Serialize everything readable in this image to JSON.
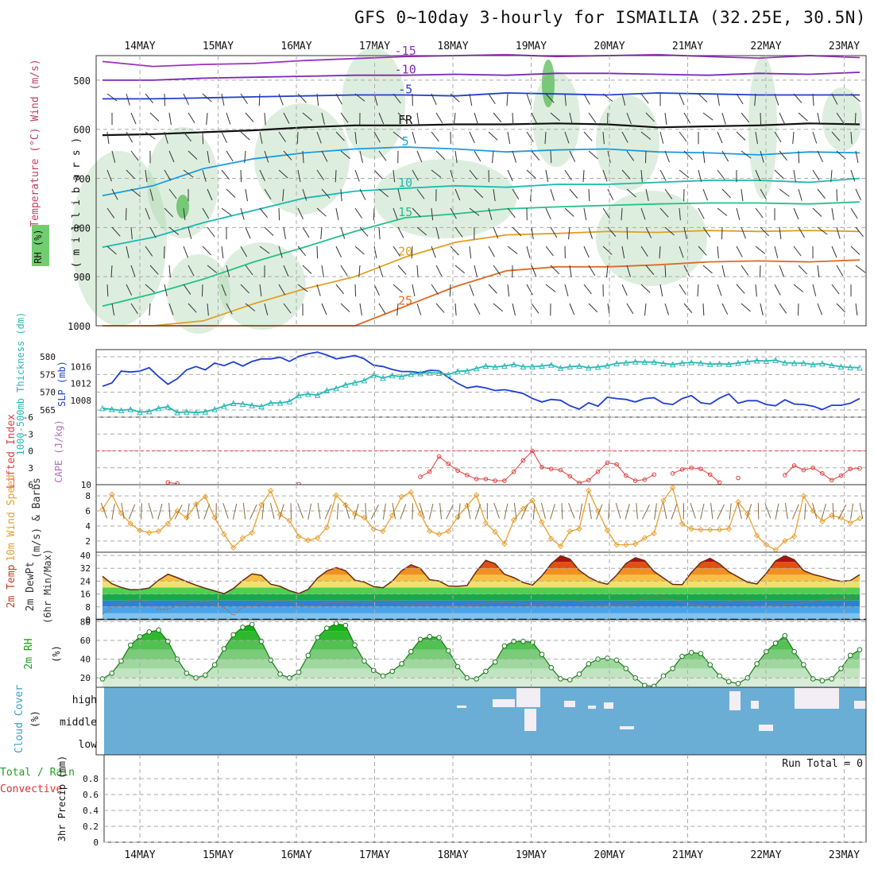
{
  "title": "GFS 0~10day 3-hourly for ISMAILIA (32.25E, 30.5N)",
  "dates": [
    "14MAY",
    "15MAY",
    "16MAY",
    "17MAY",
    "18MAY",
    "19MAY",
    "20MAY",
    "21MAY",
    "22MAY",
    "23MAY"
  ],
  "colors": {
    "rh_fill": "#9fcfa0",
    "slp": "#1f3fd0",
    "thickness": "#2ab7b7",
    "lifted_index": "#e04040",
    "wind10m": "#e8a030",
    "temp_fill": "#e05010",
    "dewpt": "#2a7ee0",
    "rh2m": "#1fc01f",
    "cloud_bg": "#6aaed6",
    "cloud_gap": "#f2eef4"
  },
  "chart_data": [
    {
      "type": "heatmap",
      "id": "upper-air",
      "ylabel_left": "RH (%)",
      "ylabel_mid": "Temperature (°C) Wind (m/s)",
      "ylabel_inner": "( m i l l i b a r s )",
      "y_ticks": [
        500,
        600,
        700,
        800,
        900,
        1000
      ],
      "ylim": [
        1000,
        450
      ],
      "temperature_contours": [
        {
          "label": "-15",
          "pressure": [
            462,
            472,
            468,
            466,
            460,
            456,
            452,
            450,
            448,
            452,
            450,
            448,
            452,
            455,
            450,
            454
          ],
          "color": "#9b30c0"
        },
        {
          "label": "-10",
          "pressure": [
            500,
            500,
            496,
            494,
            492,
            490,
            490,
            488,
            490,
            486,
            486,
            488,
            490,
            486,
            488,
            484
          ],
          "color": "#7a28b8"
        },
        {
          "label": "-5",
          "pressure": [
            538,
            538,
            536,
            534,
            532,
            530,
            530,
            532,
            526,
            528,
            530,
            526,
            528,
            530,
            530,
            530
          ],
          "color": "#1f3fd0"
        },
        {
          "label": "FR",
          "pressure": [
            612,
            610,
            606,
            602,
            596,
            592,
            592,
            590,
            590,
            588,
            590,
            596,
            594,
            592,
            588,
            590
          ],
          "color": "#111111"
        },
        {
          "label": "5",
          "pressure": [
            735,
            715,
            680,
            660,
            648,
            640,
            636,
            640,
            646,
            642,
            640,
            646,
            648,
            652,
            646,
            648
          ],
          "color": "#1b9be0"
        },
        {
          "label": "10",
          "pressure": [
            840,
            820,
            790,
            765,
            740,
            726,
            720,
            715,
            718,
            712,
            712,
            708,
            704,
            704,
            708,
            700
          ],
          "color": "#1cb8b0"
        },
        {
          "label": "15",
          "pressure": [
            960,
            935,
            905,
            870,
            840,
            808,
            780,
            772,
            762,
            758,
            755,
            752,
            750,
            750,
            752,
            748
          ],
          "color": "#24c08a"
        },
        {
          "label": "20",
          "pressure": [
            1000,
            1000,
            990,
            955,
            925,
            900,
            860,
            830,
            815,
            812,
            808,
            810,
            806,
            808,
            806,
            808
          ],
          "color": "#e0a020"
        },
        {
          "label": "25",
          "pressure": [
            1000,
            1000,
            1000,
            1000,
            1000,
            1000,
            960,
            920,
            888,
            880,
            880,
            876,
            870,
            868,
            870,
            866
          ],
          "color": "#e06a20"
        }
      ]
    },
    {
      "type": "line",
      "id": "slp-thickness",
      "ylabel_left": "1000-500mb Thickness (dm)",
      "ylabel_right": "SLP (mb)",
      "left_ticks": [
        "580",
        "575",
        "570",
        "565"
      ],
      "right_ticks": [
        "1016",
        "1012",
        "1008"
      ],
      "ylim_left": [
        563,
        582
      ],
      "ylim_right": [
        1004,
        1020
      ],
      "series": [
        {
          "name": "SLP (mb)",
          "axis": "right",
          "values": [
            1011.3,
            1012.1,
            1014.9,
            1014.7,
            1014.9,
            1015.7,
            1013.6,
            1011.8,
            1013.1,
            1015.2,
            1016.0,
            1015.2,
            1016.8,
            1016.2,
            1017.1,
            1016.1,
            1017.2,
            1017.8,
            1017.8,
            1018.2,
            1017.2,
            1018.4,
            1019.0,
            1019.4,
            1018.7,
            1017.8,
            1018.2,
            1018.6,
            1017.8,
            1016.3,
            1016.0,
            1015.3,
            1014.8,
            1014.8,
            1014.5,
            1015.1,
            1015.0,
            1013.4,
            1012.0,
            1010.9,
            1011.3,
            1010.9,
            1010.3,
            1010.5,
            1010.1,
            1009.6,
            1008.4,
            1007.6,
            1008.2,
            1008.0,
            1006.7,
            1005.9,
            1007.4,
            1006.6,
            1008.7,
            1008.4,
            1008.2,
            1007.6,
            1008.4,
            1008.6,
            1007.3,
            1007.0,
            1008.4,
            1009.1,
            1007.4,
            1007.1,
            1008.5,
            1009.5,
            1007.3,
            1007.9,
            1007.9,
            1007.0,
            1006.7,
            1008.1,
            1007.1,
            1007.0,
            1006.6,
            1005.8,
            1006.8,
            1006.8,
            1007.3,
            1008.4
          ]
        },
        {
          "name": "1000-500mb Thickness (dm)",
          "axis": "left",
          "values": [
            565.5,
            565.2,
            564.9,
            565.2,
            564.4,
            564.6,
            565.5,
            565.9,
            564.3,
            564.5,
            564.3,
            564.5,
            565.2,
            566.1,
            566.9,
            566.7,
            566.3,
            566.0,
            567.0,
            567.0,
            567.4,
            569.1,
            569.5,
            569.2,
            570.5,
            571.1,
            572.1,
            572.7,
            573.3,
            574.8,
            574.0,
            574.7,
            574.4,
            575.1,
            575.3,
            575.5,
            575.4,
            575.0,
            575.9,
            576.0,
            576.7,
            577.4,
            577.1,
            577.4,
            577.8,
            577.2,
            577.2,
            577.4,
            577.7,
            576.8,
            577.2,
            577.4,
            576.9,
            577.1,
            577.5,
            578.1,
            578.3,
            578.6,
            578.5,
            578.5,
            578.1,
            577.8,
            578.2,
            578.4,
            578.2,
            577.9,
            578.0,
            577.9,
            578.2,
            578.6,
            578.9,
            578.8,
            579.0,
            578.3,
            578.2,
            578.2,
            577.8,
            578.1,
            577.6,
            577.2,
            577.0,
            576.9
          ]
        }
      ]
    },
    {
      "type": "line",
      "id": "cape-li",
      "ylabel_left": "Lifted Index",
      "ylabel_mid": "CAPE (J/kg)",
      "left_ticks": [
        "-6",
        "-3",
        "0",
        "3",
        "6"
      ],
      "right_ticks": [
        "10"
      ],
      "ylim": [
        -6,
        6
      ],
      "series": [
        {
          "name": "Lifted Index",
          "values": [
            null,
            null,
            null,
            null,
            null,
            null,
            null,
            5.6,
            5.8,
            null,
            null,
            null,
            null,
            null,
            null,
            null,
            null,
            null,
            null,
            null,
            null,
            5.9,
            null,
            null,
            null,
            null,
            null,
            null,
            null,
            null,
            null,
            null,
            null,
            null,
            4.6,
            3.7,
            1.0,
            2.3,
            3.5,
            4.3,
            5.0,
            5.0,
            5.3,
            5.3,
            3.7,
            1.7,
            0.0,
            2.9,
            3.2,
            3.4,
            4.5,
            5.7,
            5.2,
            3.7,
            2.1,
            2.4,
            4.4,
            5.3,
            5.1,
            4.2,
            null,
            4.0,
            3.3,
            3.0,
            3.2,
            4.2,
            5.6,
            null,
            4.8,
            null,
            null,
            null,
            null,
            4.3,
            2.6,
            3.4,
            3.0,
            4.0,
            5.2,
            4.4,
            3.2,
            3.1
          ]
        }
      ]
    },
    {
      "type": "line",
      "id": "wind10m",
      "ylabel_left": "10m Wind Speed",
      "ylabel_mid": "(m/s) & Barbs",
      "left_ticks": [
        "8",
        "6",
        "4",
        "2"
      ],
      "ylim": [
        0.5,
        9.5
      ],
      "series": [
        {
          "name": "10m Wind Speed",
          "values": [
            6.2,
            8.2,
            5.7,
            4.3,
            3.4,
            3.1,
            3.3,
            4.3,
            6.0,
            5.1,
            6.9,
            7.9,
            5.1,
            2.9,
            1.1,
            2.4,
            3.1,
            6.8,
            8.7,
            5.5,
            4.7,
            2.6,
            2.1,
            2.4,
            3.8,
            8.1,
            6.8,
            5.6,
            5.1,
            3.6,
            3.3,
            5.4,
            7.9,
            8.5,
            5.6,
            3.3,
            2.9,
            3.3,
            5.2,
            6.7,
            8.1,
            4.4,
            3.2,
            1.6,
            4.8,
            6.3,
            7.4,
            4.5,
            2.3,
            1.3,
            3.3,
            3.6,
            8.7,
            6.0,
            3.4,
            1.5,
            1.5,
            1.6,
            2.4,
            3.0,
            7.4,
            9.1,
            4.3,
            3.6,
            3.5,
            3.5,
            3.5,
            3.6,
            7.2,
            5.6,
            2.7,
            1.5,
            0.8,
            2.0,
            2.6,
            8.0,
            6.0,
            4.6,
            5.4,
            5.1,
            4.4,
            5.0
          ]
        }
      ]
    },
    {
      "type": "area",
      "id": "temp-dewpt",
      "ylabel_left": "2m Temp",
      "ylabel_mid": "2m DewPt",
      "ylabel_right": "(6hr Min/Max)",
      "left_ticks": [
        "40",
        "32",
        "24",
        "16",
        "8",
        "0"
      ],
      "ylim": [
        0,
        42
      ],
      "series": [
        {
          "name": "2m Temp",
          "values": [
            27,
            22.4,
            20.1,
            18.7,
            18.8,
            19.7,
            24.6,
            28.3,
            26.2,
            23.7,
            21.5,
            19.6,
            18.0,
            16.2,
            19.4,
            24.4,
            28.5,
            27.6,
            22.1,
            20.8,
            18.1,
            16.3,
            18.9,
            25.9,
            30.4,
            32.4,
            30.5,
            24.6,
            23.4,
            20.6,
            19.9,
            24.0,
            30.5,
            34.2,
            31.9,
            24.9,
            24.1,
            21.0,
            20.8,
            21.3,
            30.1,
            36.9,
            34.9,
            28.3,
            26.2,
            23.2,
            21.6,
            27.3,
            34.8,
            39.8,
            37.7,
            30.8,
            26.5,
            23.6,
            22.1,
            27.7,
            35.0,
            38.6,
            36.8,
            30.0,
            26.0,
            22.0,
            21.8,
            29.4,
            35.6,
            38.2,
            34.8,
            29.8,
            26.6,
            23.3,
            22.3,
            28.8,
            36.6,
            39.8,
            37.3,
            30.6,
            28.2,
            26.8,
            25.0,
            23.9,
            24.3,
            28.0
          ]
        },
        {
          "name": "2m DewPt",
          "values": [
            3.4,
            7.6,
            9.8,
            12.2,
            12.2,
            10.6,
            6.3,
            6.5,
            9.0,
            10.1,
            11.1,
            11.8,
            9.6,
            7.5,
            2.6,
            8.0,
            8.7,
            11.0,
            11.5,
            11.8,
            11.6,
            9.6,
            8.6,
            8.3,
            10.7,
            11.0,
            10.8,
            11.3,
            10.7,
            11.7,
            12.2,
            11.8,
            9.9,
            9.1,
            9.8,
            9.7,
            8.8,
            9.0,
            8.2,
            9.2,
            9.5,
            10.1,
            10.9,
            11.0,
            10.6,
            10.0,
            9.0,
            9.6,
            10.5,
            11.5,
            12.1,
            11.8,
            10.4,
            8.9,
            8.8,
            9.4,
            9.1,
            11.1,
            13.8,
            14.5,
            13.4,
            12.6,
            11.0,
            9.5,
            9.0,
            8.0,
            9.1,
            11.3,
            12.3,
            11.3,
            8.8,
            8.8,
            9.1,
            9.6,
            9.9,
            10.5,
            11.2,
            12.5,
            13.4,
            12.9,
            14.1,
            14.5
          ]
        }
      ]
    },
    {
      "type": "area",
      "id": "rh2m",
      "ylabel_left": "2m RH",
      "ylabel_mid": "(%)",
      "left_ticks": [
        "80",
        "60",
        "40",
        "20"
      ],
      "ylim": [
        10,
        82
      ],
      "series": [
        {
          "name": "2m RH",
          "values": [
            19,
            25,
            38,
            55,
            64,
            69,
            71,
            59,
            40,
            25,
            20,
            23,
            34,
            51,
            66,
            74,
            77,
            59,
            39,
            24,
            20,
            26,
            44,
            63,
            73,
            78,
            76,
            55,
            38,
            28,
            22,
            27,
            35,
            48,
            61,
            64,
            63,
            49,
            32,
            20,
            19,
            27,
            37,
            54,
            59,
            59,
            58,
            45,
            31,
            19,
            18,
            24,
            35,
            40,
            41,
            39,
            30,
            20,
            12,
            11,
            22,
            30,
            43,
            47,
            46,
            34,
            22,
            16,
            14,
            20,
            35,
            48,
            57,
            65,
            48,
            34,
            19,
            17,
            19,
            30,
            44,
            50
          ]
        }
      ]
    },
    {
      "type": "table",
      "id": "cloud-cover",
      "ylabel_left": "Cloud Cover",
      "ylabel_mid": "(%)",
      "levels": [
        "high",
        "middle",
        "low"
      ]
    },
    {
      "type": "bar",
      "id": "precip",
      "ylabel_left": "Total / Rain",
      "ylabel_left2": "Convective",
      "ylabel_mid": "3hr Precip (mm)",
      "left_ticks": [
        "0.8",
        "0.6",
        "0.4",
        "0.2",
        "0"
      ],
      "ylim": [
        0,
        1
      ],
      "run_total": "Run Total = 0"
    }
  ]
}
